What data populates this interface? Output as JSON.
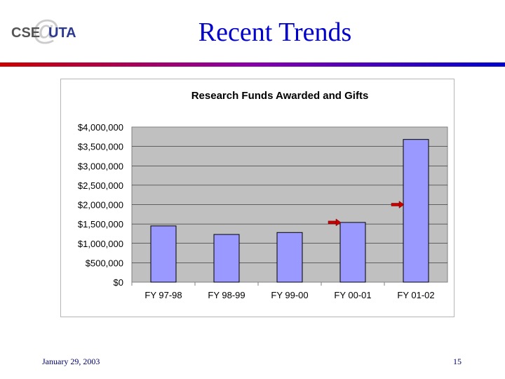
{
  "slide": {
    "title": "Recent Trends",
    "footer_date": "January 29, 2003",
    "page_number": "15"
  },
  "logo": {
    "text_left": "CSE",
    "text_right": "UTA",
    "colors": {
      "left": "#555555",
      "right": "#2b3990",
      "at": "#bbbbbb"
    }
  },
  "colors": {
    "title": "#0000cc",
    "bar": "#9999ff",
    "plot_bg": "#c0c0c0",
    "arrow": "#cc0000",
    "divider_start": "#cc0000",
    "divider_end": "#0000cc"
  },
  "chart_data": {
    "type": "bar",
    "title": "Research Funds Awarded and Gifts",
    "categories": [
      "FY 97-98",
      "FY 98-99",
      "FY 99-00",
      "FY 00-01",
      "FY 01-02"
    ],
    "values": [
      1450000,
      1230000,
      1280000,
      1540000,
      3680000
    ],
    "ylim": [
      0,
      4000000
    ],
    "yticks": [
      0,
      500000,
      1000000,
      1500000,
      2000000,
      2500000,
      3000000,
      3500000,
      4000000
    ],
    "ytick_labels": [
      "$0",
      "$500,000",
      "$1,000,000",
      "$1,500,000",
      "$2,000,000",
      "$2,500,000",
      "$3,000,000",
      "$3,500,000",
      "$4,000,000"
    ],
    "grid": true,
    "xlabel": "",
    "ylabel": "",
    "annotations": [
      {
        "type": "arrow",
        "category_index": 3,
        "value": 1540000
      },
      {
        "type": "arrow",
        "category_index": 4,
        "value": 2000000
      }
    ]
  }
}
